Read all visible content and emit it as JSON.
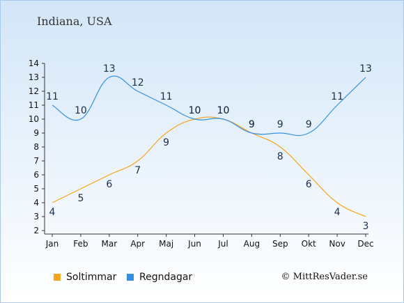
{
  "page_title": "Indiana, USA",
  "credit": "© MittResVader.se",
  "colors": {
    "sun": "#f7a41d",
    "rain": "#3591e0",
    "axis": "#333333"
  },
  "chart_data": {
    "type": "line",
    "categories": [
      "Jan",
      "Feb",
      "Mar",
      "Apr",
      "Maj",
      "Jun",
      "Jul",
      "Aug",
      "Sep",
      "Okt",
      "Nov",
      "Dec"
    ],
    "ylim": [
      2,
      14
    ],
    "yticks": [
      2,
      3,
      4,
      5,
      6,
      7,
      8,
      9,
      10,
      11,
      12,
      13,
      14
    ],
    "grid": false,
    "legend_position": "bottom-left",
    "series": [
      {
        "name": "Soltimmar",
        "color": "#f7a41d",
        "values": [
          4,
          5,
          6,
          7,
          9,
          10,
          10,
          9,
          8,
          6,
          4,
          3
        ]
      },
      {
        "name": "Regndagar",
        "color": "#3591e0",
        "values": [
          11,
          10,
          13,
          12,
          11,
          10,
          10,
          9,
          9,
          9,
          11,
          13
        ]
      }
    ]
  }
}
